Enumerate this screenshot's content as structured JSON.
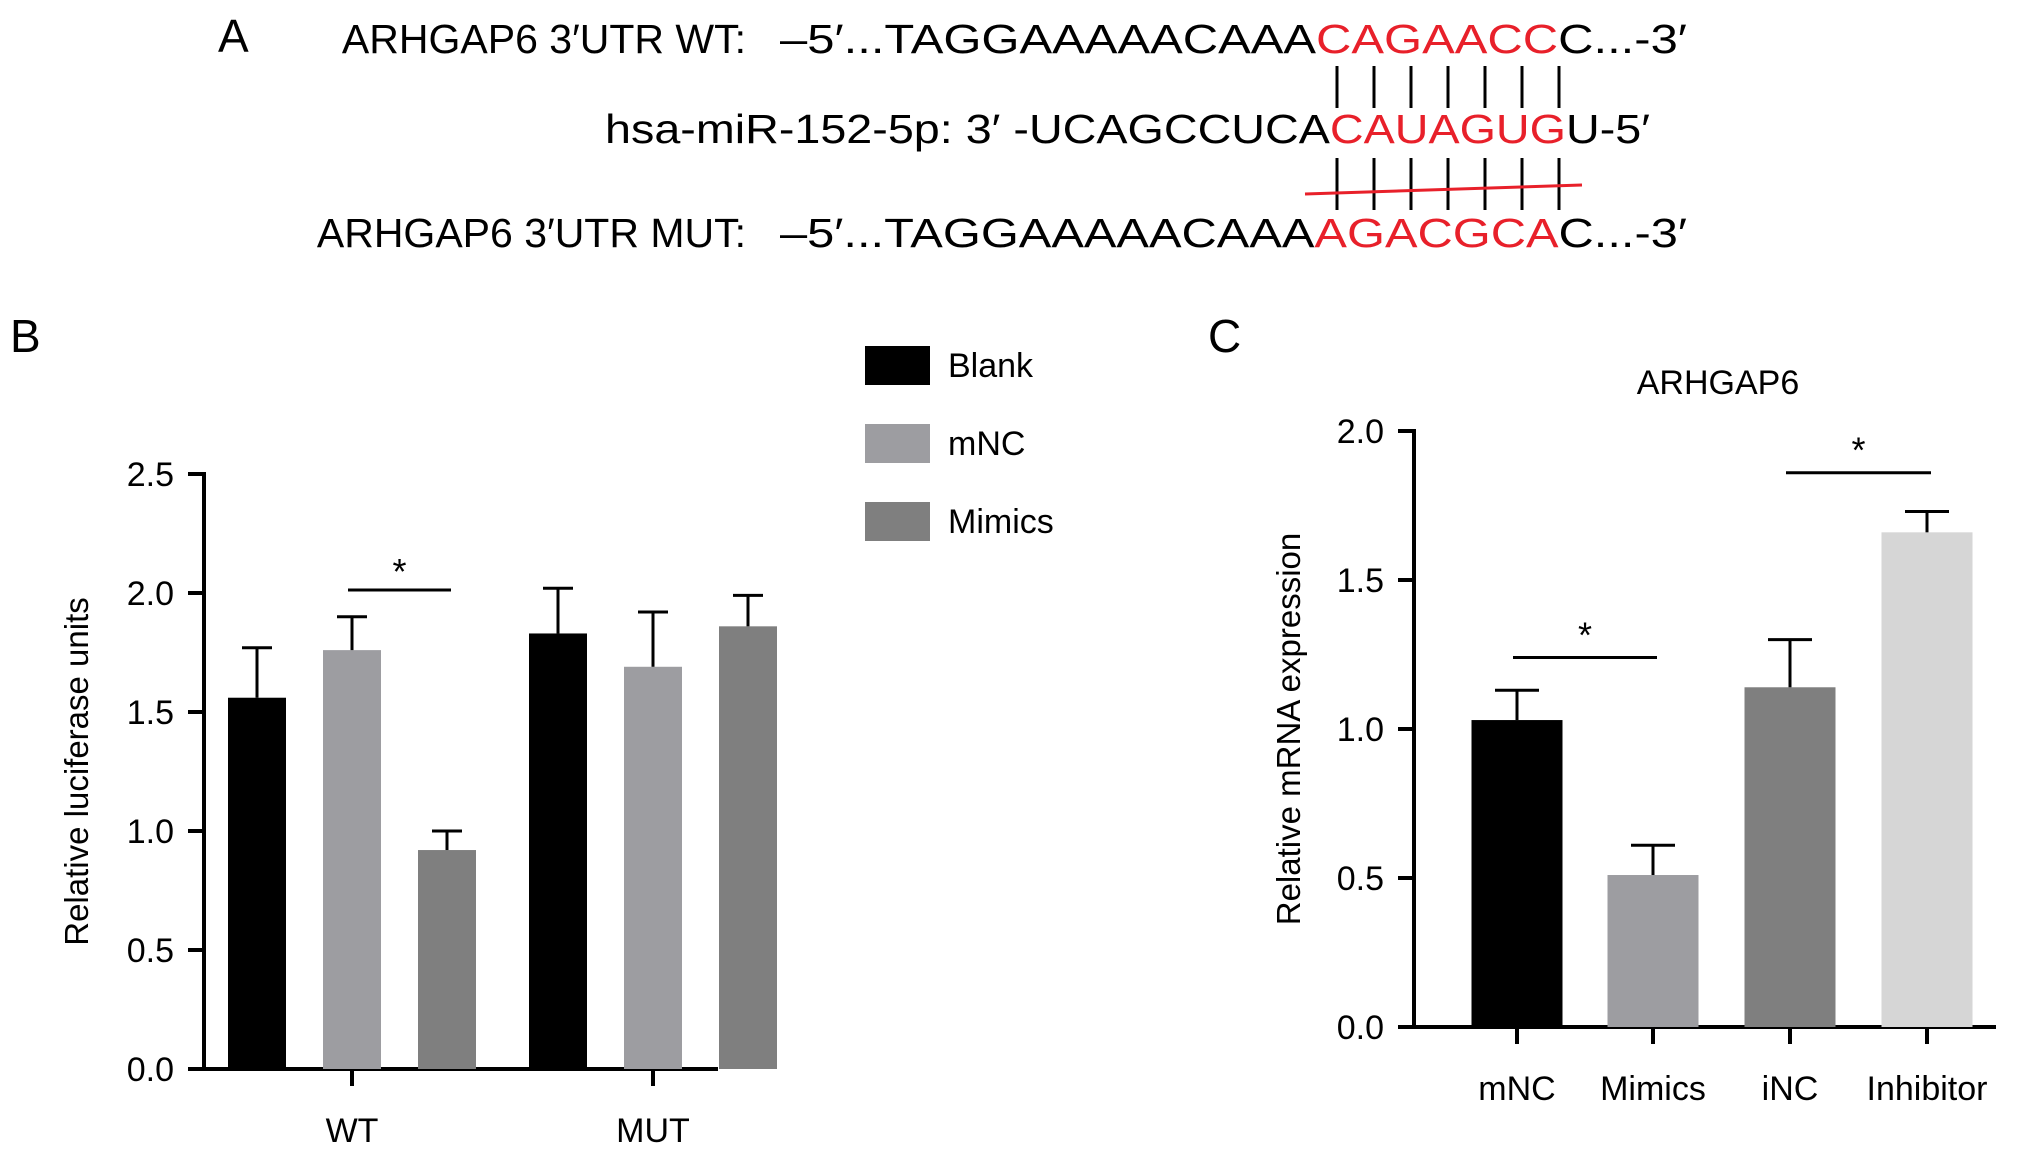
{
  "panel_a": {
    "label": "A",
    "wt": {
      "prefix": "ARHGAP6 3′UTR WT:",
      "seq_start": "–5′...TAGGAAAAACAAA",
      "site": "CAGAACC",
      "seq_end": "C...-3′"
    },
    "mirna": {
      "prefix": "hsa-miR-152-5p: 3′ -UCAGCCUCA",
      "site": "CAUAGUG",
      "seq_end": "U-5′"
    },
    "mut": {
      "prefix": "ARHGAP6 3′UTR MUT:",
      "seq_start": "–5′...TAGGAAAAACAAA",
      "site": "AGACGCA",
      "seq_end": "C...-3′"
    },
    "site_color": "#e8202a"
  },
  "chart_data": [
    {
      "panel": "B",
      "type": "bar",
      "title": "",
      "xlabel": "",
      "ylabel": "Relative luciferase units",
      "ylim": [
        0,
        2.5
      ],
      "yticks": [
        "0.0",
        "0.5",
        "1.0",
        "1.5",
        "2.0",
        "2.5"
      ],
      "categories": [
        "WT",
        "MUT"
      ],
      "series": [
        {
          "name": "Blank",
          "color": "#000000",
          "values": [
            1.56,
            1.83
          ],
          "errors": [
            0.21,
            0.19
          ]
        },
        {
          "name": "mNC",
          "color": "#9d9da1",
          "values": [
            1.76,
            1.69
          ],
          "errors": [
            0.14,
            0.23
          ]
        },
        {
          "name": "Mimics",
          "color": "#7f7f7f",
          "values": [
            0.92,
            1.86
          ],
          "errors": [
            0.08,
            0.13
          ]
        }
      ],
      "legend_position": "top-right",
      "annotations": [
        {
          "text": "*",
          "category": "WT",
          "between": [
            "mNC",
            "Mimics"
          ],
          "y": 2.0
        }
      ]
    },
    {
      "panel": "C",
      "type": "bar",
      "title": "ARHGAP6",
      "xlabel": "",
      "ylabel": "Relative mRNA expression",
      "ylim": [
        0,
        2.0
      ],
      "yticks": [
        "0.0",
        "0.5",
        "1.0",
        "1.5",
        "2.0"
      ],
      "categories": [
        "mNC",
        "Mimics",
        "iNC",
        "Inhibitor"
      ],
      "values": [
        1.03,
        0.51,
        1.14,
        1.66
      ],
      "errors": [
        0.1,
        0.1,
        0.16,
        0.07
      ],
      "colors": [
        "#000000",
        "#9d9da1",
        "#7f7f7f",
        "#d6d6d6"
      ],
      "annotations": [
        {
          "text": "*",
          "between": [
            "mNC",
            "Mimics"
          ],
          "y": 1.24
        },
        {
          "text": "*",
          "between": [
            "iNC",
            "Inhibitor"
          ],
          "y": 1.86
        }
      ]
    }
  ],
  "panel_b_label": "B",
  "panel_c_label": "C"
}
